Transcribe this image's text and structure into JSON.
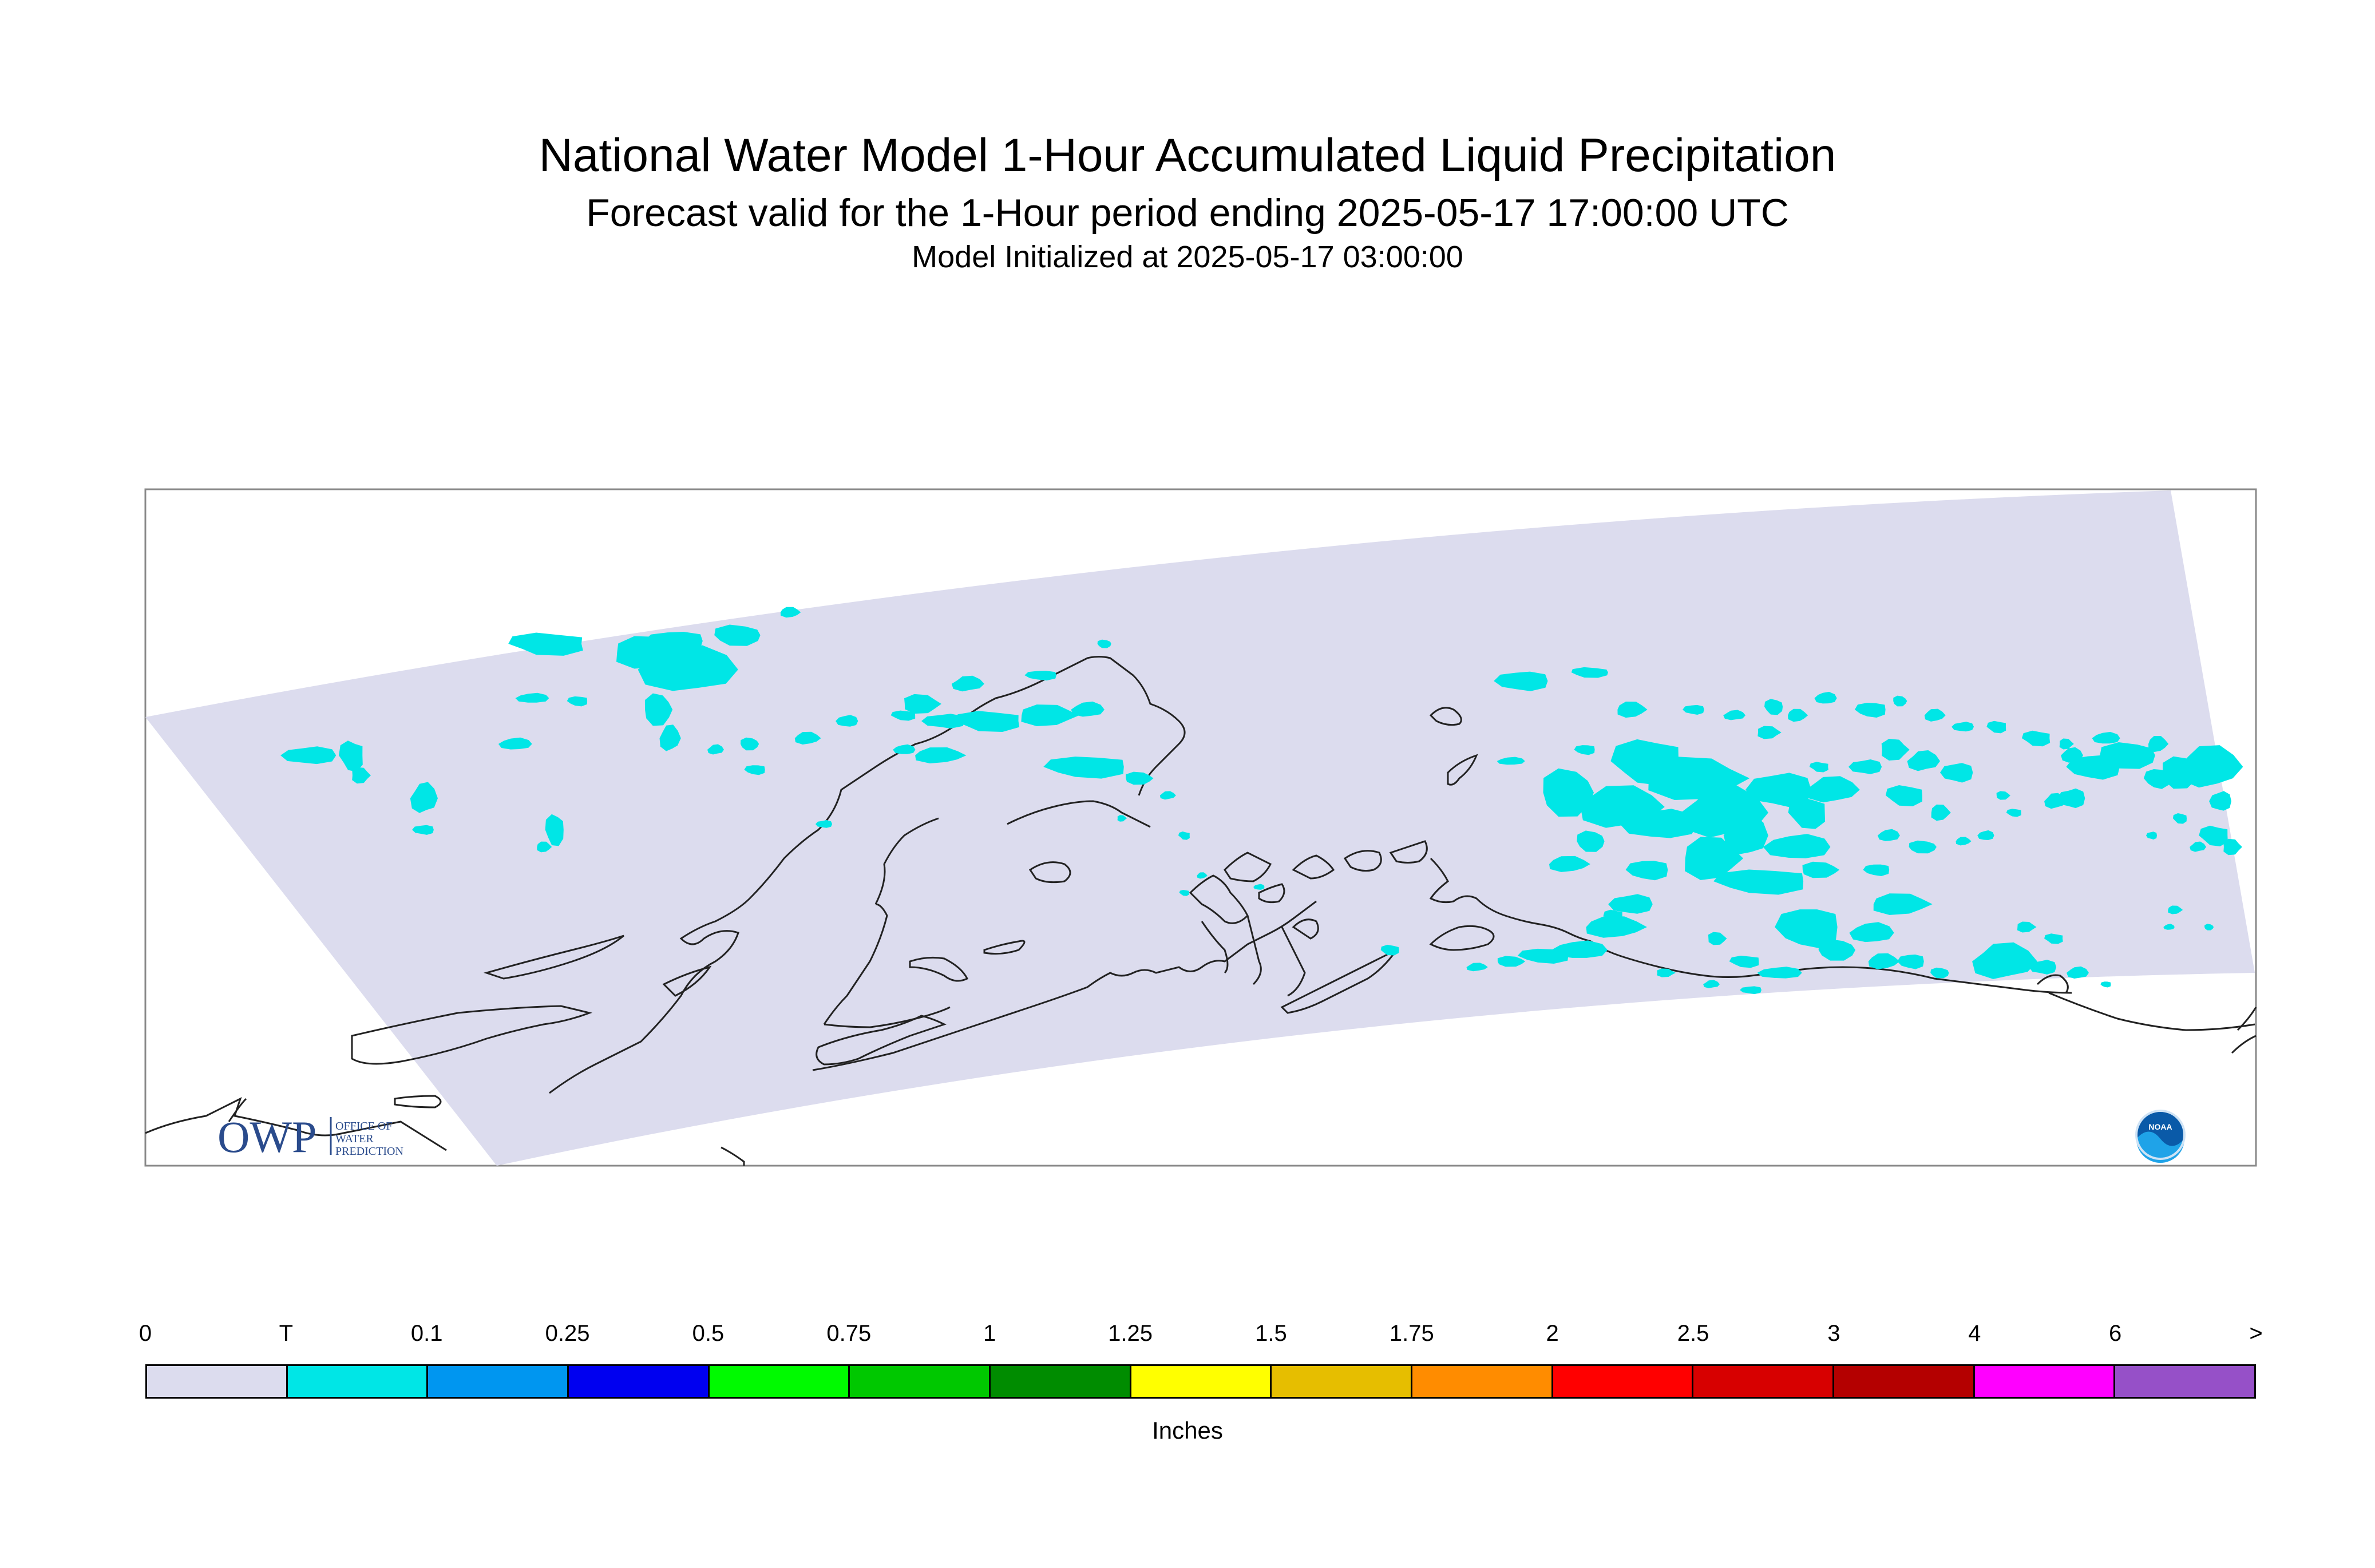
{
  "title": "National Water Model 1-Hour Accumulated Liquid Precipitation",
  "subtitle": "Forecast valid for the 1-Hour period ending 2025-05-17 17:00:00 UTC",
  "init_line": "Model Initialized at 2025-05-17 03:00:00",
  "logos": {
    "owp_text": "OWP",
    "owp_subtext": [
      "OFFICE OF",
      "WATER",
      "PREDICTION"
    ],
    "noaa_text": "NOAA"
  },
  "map": {
    "domain_color": "#dcdcee",
    "precip_color": "#00e6e6",
    "coast_color": "#222222"
  },
  "legend": {
    "labels": [
      "0",
      "T",
      "0.1",
      "0.25",
      "0.5",
      "0.75",
      "1",
      "1.25",
      "1.5",
      "1.75",
      "2",
      "2.5",
      "3",
      "4",
      "6",
      ">"
    ],
    "colors": [
      "#dcdcee",
      "#00e6e6",
      "#0096f0",
      "#0000f0",
      "#00fa00",
      "#00c800",
      "#008c00",
      "#ffff00",
      "#e6be00",
      "#ff8c00",
      "#ff0000",
      "#d70000",
      "#b40000",
      "#ff00ff",
      "#9650c8"
    ],
    "units": "Inches"
  }
}
